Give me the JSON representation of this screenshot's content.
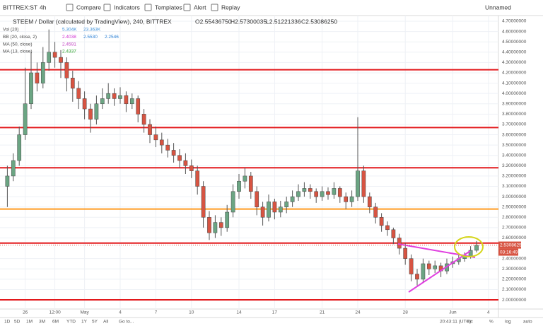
{
  "toolbar": {
    "symbol": "BITTREX:ST",
    "interval": "4h",
    "buttons": [
      "Compare",
      "Indicators",
      "Templates",
      "Alert",
      "Replay"
    ],
    "layout": "Unnamed"
  },
  "bottom_bar": {
    "ranges": [
      "1D",
      "5D",
      "1M",
      "3M",
      "6M",
      "YTD",
      "1Y",
      "5Y",
      "All"
    ],
    "goto": "Go to...",
    "clock": "20:43:11 (UTC)",
    "scale_options": [
      "ext",
      "%",
      "log",
      "auto"
    ]
  },
  "chart_data": {
    "type": "candlestick",
    "title": "STEEM / Dollar (calculated by TradingView), 240, BITTREX",
    "ohlc": [
      "O2.55436750",
      "H2.57300035",
      "L2.51221336",
      "C2.53086250"
    ],
    "indicators": [
      {
        "name": "Vol (20)",
        "values": [
          "5.304K",
          "23.363K"
        ],
        "colors": [
          "#3a8fd9",
          "#3a8fd9"
        ]
      },
      {
        "name": "BB (20, close, 2)",
        "values": [
          "2.4038",
          "2.5530",
          "2.2546"
        ],
        "colors": [
          "#d02fd0",
          "#2a7fd4",
          "#2a7fd4"
        ]
      },
      {
        "name": "MA (50, close)",
        "values": [
          "2.4591"
        ],
        "colors": [
          "#c040c0"
        ]
      },
      {
        "name": "MA (13, close)",
        "values": [
          "2.4337"
        ],
        "colors": [
          "#2ca02c"
        ]
      }
    ],
    "categories": [
      null,
      null,
      null,
      "26",
      null,
      null,
      null,
      null,
      "12:00",
      null,
      null,
      null,
      null,
      "May",
      null,
      null,
      null,
      null,
      null,
      "4",
      null,
      null,
      null,
      null,
      null,
      "7",
      null,
      null,
      null,
      null,
      null,
      "10",
      null,
      null,
      null,
      null,
      null,
      null,
      null,
      "14",
      null,
      null,
      null,
      null,
      null,
      "17",
      null,
      null,
      null,
      null,
      null,
      null,
      null,
      "21",
      null,
      null,
      null,
      null,
      null,
      "24",
      null,
      null,
      null,
      null,
      null,
      null,
      null,
      "28",
      null,
      null,
      null,
      null,
      null,
      null,
      null,
      "Jun",
      null,
      null,
      null,
      null,
      null,
      "4"
    ],
    "values": [
      [
        3.1,
        3.3,
        2.9,
        3.2
      ],
      [
        3.2,
        3.42,
        3.15,
        3.35
      ],
      [
        3.35,
        3.68,
        3.3,
        3.6
      ],
      [
        3.6,
        4.25,
        3.55,
        3.9
      ],
      [
        3.9,
        4.4,
        3.85,
        4.2
      ],
      [
        4.2,
        4.3,
        4.02,
        4.1
      ],
      [
        4.1,
        4.45,
        4.05,
        4.3
      ],
      [
        4.3,
        4.62,
        4.22,
        4.4
      ],
      [
        4.4,
        4.5,
        4.25,
        4.35
      ],
      [
        4.35,
        4.42,
        4.15,
        4.3
      ],
      [
        4.3,
        4.35,
        4.02,
        4.15
      ],
      [
        4.15,
        4.22,
        3.92,
        4.05
      ],
      [
        4.05,
        4.12,
        3.85,
        3.95
      ],
      [
        3.95,
        4.02,
        3.75,
        3.85
      ],
      [
        3.85,
        3.9,
        3.62,
        3.75
      ],
      [
        3.75,
        3.98,
        3.7,
        3.9
      ],
      [
        3.9,
        4.05,
        3.85,
        3.95
      ],
      [
        3.95,
        4.1,
        3.9,
        4.0
      ],
      [
        4.0,
        4.05,
        3.88,
        3.95
      ],
      [
        3.95,
        4.06,
        3.9,
        3.98
      ],
      [
        3.98,
        4.02,
        3.82,
        3.9
      ],
      [
        3.9,
        4.0,
        3.85,
        3.95
      ],
      [
        3.95,
        3.98,
        3.72,
        3.8
      ],
      [
        3.8,
        3.85,
        3.62,
        3.7
      ],
      [
        3.7,
        3.75,
        3.52,
        3.6
      ],
      [
        3.6,
        3.68,
        3.48,
        3.55
      ],
      [
        3.55,
        3.62,
        3.42,
        3.5
      ],
      [
        3.5,
        3.56,
        3.38,
        3.45
      ],
      [
        3.45,
        3.52,
        3.33,
        3.4
      ],
      [
        3.4,
        3.46,
        3.28,
        3.35
      ],
      [
        3.35,
        3.42,
        3.22,
        3.3
      ],
      [
        3.3,
        3.36,
        3.18,
        3.25
      ],
      [
        3.25,
        3.3,
        3.02,
        3.1
      ],
      [
        3.1,
        3.15,
        2.7,
        2.8
      ],
      [
        2.8,
        2.86,
        2.58,
        2.65
      ],
      [
        2.65,
        2.82,
        2.6,
        2.75
      ],
      [
        2.75,
        2.8,
        2.62,
        2.7
      ],
      [
        2.7,
        2.92,
        2.66,
        2.85
      ],
      [
        2.85,
        3.12,
        2.8,
        3.05
      ],
      [
        3.05,
        3.22,
        2.98,
        3.15
      ],
      [
        3.15,
        3.28,
        3.08,
        3.2
      ],
      [
        3.2,
        3.24,
        2.98,
        3.05
      ],
      [
        3.05,
        3.1,
        2.82,
        2.9
      ],
      [
        2.9,
        2.95,
        2.72,
        2.8
      ],
      [
        2.8,
        3.02,
        2.76,
        2.95
      ],
      [
        2.95,
        2.98,
        2.78,
        2.85
      ],
      [
        2.85,
        2.96,
        2.8,
        2.9
      ],
      [
        2.9,
        3.0,
        2.84,
        2.95
      ],
      [
        2.95,
        3.06,
        2.9,
        3.0
      ],
      [
        3.0,
        3.12,
        2.96,
        3.05
      ],
      [
        3.05,
        3.14,
        3.0,
        3.08
      ],
      [
        3.08,
        3.12,
        2.98,
        3.05
      ],
      [
        3.05,
        3.08,
        2.94,
        3.0
      ],
      [
        3.0,
        3.1,
        2.96,
        3.05
      ],
      [
        3.05,
        3.09,
        2.97,
        3.02
      ],
      [
        3.02,
        3.14,
        2.98,
        3.08
      ],
      [
        3.08,
        3.1,
        2.94,
        3.0
      ],
      [
        3.0,
        3.04,
        2.88,
        2.95
      ],
      [
        2.95,
        3.06,
        2.9,
        3.0
      ],
      [
        3.0,
        3.77,
        2.96,
        3.25
      ],
      [
        3.25,
        3.3,
        2.94,
        3.0
      ],
      [
        3.0,
        3.04,
        2.84,
        2.9
      ],
      [
        2.9,
        2.94,
        2.74,
        2.8
      ],
      [
        2.8,
        2.84,
        2.66,
        2.72
      ],
      [
        2.72,
        2.76,
        2.62,
        2.68
      ],
      [
        2.68,
        2.7,
        2.54,
        2.6
      ],
      [
        2.6,
        2.64,
        2.44,
        2.5
      ],
      [
        2.5,
        2.55,
        2.34,
        2.4
      ],
      [
        2.4,
        2.44,
        2.18,
        2.25
      ],
      [
        2.25,
        2.3,
        2.14,
        2.2
      ],
      [
        2.2,
        2.4,
        2.17,
        2.35
      ],
      [
        2.35,
        2.38,
        2.24,
        2.3
      ],
      [
        2.3,
        2.38,
        2.26,
        2.33
      ],
      [
        2.33,
        2.36,
        2.22,
        2.28
      ],
      [
        2.28,
        2.4,
        2.25,
        2.35
      ],
      [
        2.35,
        2.42,
        2.31,
        2.37
      ],
      [
        2.37,
        2.44,
        2.34,
        2.4
      ],
      [
        2.4,
        2.46,
        2.37,
        2.42
      ],
      [
        2.42,
        2.52,
        2.4,
        2.48
      ],
      [
        2.48,
        2.57,
        2.46,
        2.53
      ],
      null,
      null
    ],
    "up_color": "#6ba583",
    "down_color": "#d75442",
    "ylim": [
      1.918,
      4.755
    ],
    "yticks": [
      {
        "value": 2.0,
        "label": "2.00000000"
      },
      {
        "value": 2.1,
        "label": "2.10000000"
      },
      {
        "value": 2.2,
        "label": "2.20000000"
      },
      {
        "value": 2.3,
        "label": "2.30000000"
      },
      {
        "value": 2.4,
        "label": "2.40000000"
      },
      {
        "value": 2.6,
        "label": "2.60000000"
      },
      {
        "value": 2.7,
        "label": "2.70000000"
      },
      {
        "value": 2.8,
        "label": "2.80000000"
      },
      {
        "value": 2.9,
        "label": "2.90000000"
      },
      {
        "value": 3.0,
        "label": "3.00000000"
      },
      {
        "value": 3.1,
        "label": "3.10000000"
      },
      {
        "value": 3.2,
        "label": "3.20000000"
      },
      {
        "value": 3.3,
        "label": "3.30000000"
      },
      {
        "value": 3.4,
        "label": "3.40000000"
      },
      {
        "value": 3.5,
        "label": "3.50000000"
      },
      {
        "value": 3.6,
        "label": "3.60000000"
      },
      {
        "value": 3.7,
        "label": "3.70000000"
      },
      {
        "value": 3.8,
        "label": "3.80000000"
      },
      {
        "value": 3.9,
        "label": "3.90000000"
      },
      {
        "value": 4.0,
        "label": "4.00000000"
      },
      {
        "value": 4.1,
        "label": "4.10000000"
      },
      {
        "value": 4.2,
        "label": "4.20000000"
      },
      {
        "value": 4.3,
        "label": "4.30000000"
      },
      {
        "value": 4.4,
        "label": "4.40000000"
      },
      {
        "value": 4.5,
        "label": "4.50000000"
      },
      {
        "value": 4.6,
        "label": "4.60000000"
      },
      {
        "value": 4.7,
        "label": "4.70000000"
      }
    ],
    "grid": true,
    "levels": [
      {
        "value": 4.23,
        "color": "#e3191c"
      },
      {
        "value": 3.67,
        "color": "#e3191c"
      },
      {
        "value": 3.28,
        "color": "#e3191c"
      },
      {
        "value": 2.88,
        "color": "#ff9a1f"
      },
      {
        "value": 2.55,
        "color": "#e3191c"
      },
      {
        "value": 2.0,
        "color": "#e3191c"
      }
    ],
    "last_price": {
      "value": 2.5308625,
      "label": "2.53086250"
    },
    "countdown": "03:16:49"
  }
}
